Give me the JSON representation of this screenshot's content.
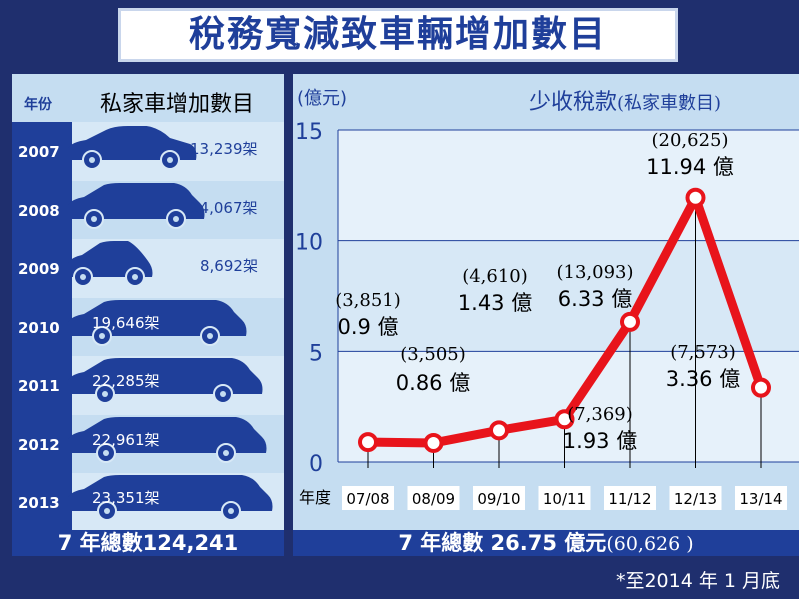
{
  "title": "稅務寬減致車輛增加數目",
  "left": {
    "year_header": "年份",
    "title": "私家車增加數目",
    "rows": [
      {
        "year": "2007",
        "count": "13,239架"
      },
      {
        "year": "2008",
        "count": "14,067架"
      },
      {
        "year": "2009",
        "count": "8,692架"
      },
      {
        "year": "2010",
        "count": "19,646架"
      },
      {
        "year": "2011",
        "count": "22,285架"
      },
      {
        "year": "2012",
        "count": "22,961架"
      },
      {
        "year": "2013",
        "count": "23,351架"
      }
    ],
    "total": "7 年總數124,241"
  },
  "right": {
    "unit": "(億元)",
    "title": "少收稅款",
    "title_paren": "(私家車數目)",
    "x_label": "年度",
    "total": "7 年總數 26.75 億元",
    "total_paren": "(60,626 )"
  },
  "chart_data": {
    "type": "line",
    "x": [
      "07/08",
      "08/09",
      "09/10",
      "10/11",
      "11/12",
      "12/13",
      "13/14"
    ],
    "y": [
      0.9,
      0.86,
      1.43,
      1.93,
      6.33,
      11.94,
      3.36
    ],
    "y_labels": [
      "0.9 億",
      "0.86 億",
      "1.43 億",
      "1.93 億",
      "6.33 億",
      "11.94 億",
      "3.36 億"
    ],
    "counts": [
      "(3,851)",
      "(3,505)",
      "(4,610)",
      "(7,369)",
      "(13,093)",
      "(20,625)",
      "(7,573)"
    ],
    "y_ticks": [
      0,
      5,
      10,
      15
    ],
    "ylim": [
      0,
      15
    ],
    "line_color": "#e8141b",
    "grid": true
  },
  "note": "*至2014 年 1 月底"
}
